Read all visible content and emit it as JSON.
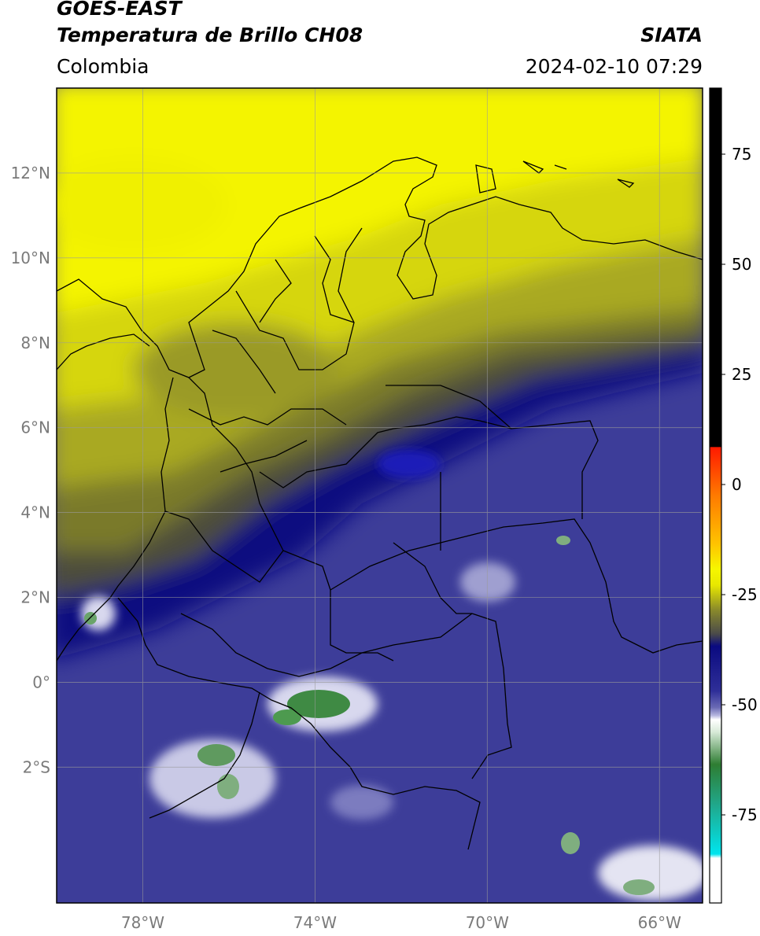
{
  "header": {
    "line1": "GOES-EAST",
    "line2": "Temperatura de Brillo CH08",
    "region": "Colombia",
    "source": "SIATA",
    "datetime": "2024-02-10 07:29"
  },
  "map": {
    "extent": {
      "lon_min": -80,
      "lon_max": -65,
      "lat_min": -5.2,
      "lat_max": 14.0
    },
    "lon_ticks": [
      {
        "lon": -78,
        "label": "78°W"
      },
      {
        "lon": -74,
        "label": "74°W"
      },
      {
        "lon": -70,
        "label": "70°W"
      },
      {
        "lon": -66,
        "label": "66°W"
      }
    ],
    "lat_ticks": [
      {
        "lat": 12,
        "label": "12°N"
      },
      {
        "lat": 10,
        "label": "10°N"
      },
      {
        "lat": 8,
        "label": "8°N"
      },
      {
        "lat": 6,
        "label": "6°N"
      },
      {
        "lat": 4,
        "label": "4°N"
      },
      {
        "lat": 2,
        "label": "2°N"
      },
      {
        "lat": 0,
        "label": "0°"
      },
      {
        "lat": -2,
        "label": "2°S"
      }
    ],
    "gridlines": true
  },
  "colorbar": {
    "range": [
      -95,
      90
    ],
    "ticks": [
      {
        "value": 75,
        "label": "75"
      },
      {
        "value": 50,
        "label": "50"
      },
      {
        "value": 25,
        "label": "25"
      },
      {
        "value": 0,
        "label": "0"
      },
      {
        "value": -25,
        "label": "-25"
      },
      {
        "value": -50,
        "label": "-50"
      },
      {
        "value": -75,
        "label": "-75"
      }
    ],
    "colors": {
      "black": "#000000",
      "red": "#ff2a00",
      "orange": "#ff9900",
      "yellow": "#f6f600",
      "olive": "#8a8a2a",
      "gray": "#555555",
      "navy": "#0a0a80",
      "blue": "#3b3b9e",
      "lavender": "#b8b8e0",
      "white": "#ffffff",
      "green": "#2e7d32",
      "teal": "#20b2aa",
      "cyan": "#00e5ee"
    }
  }
}
